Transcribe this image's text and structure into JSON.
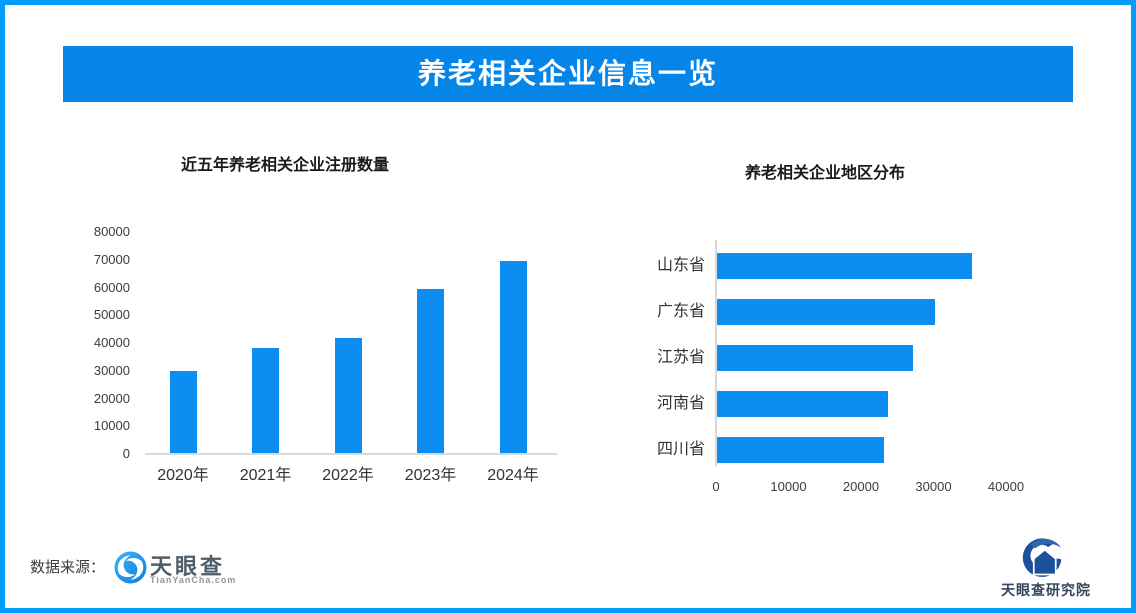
{
  "page": {
    "title": "养老相关企业信息一览",
    "colors": {
      "border_blue": "#009dff",
      "banner_blue": "#0585e8",
      "bar_blue": "#0b8df2",
      "axis_gray": "#d9d9d9",
      "tyc_blue": "#1e97f2",
      "research_navy": "#1c4f9c"
    }
  },
  "chart_data": [
    {
      "type": "bar",
      "orientation": "vertical",
      "title": "近五年养老相关企业注册数量",
      "categories": [
        "2020年",
        "2021年",
        "2022年",
        "2023年",
        "2024年"
      ],
      "values": [
        29500,
        37800,
        41600,
        59200,
        69300
      ],
      "xlabel": "",
      "ylabel": "",
      "ylim": [
        0,
        80000
      ],
      "yticks": [
        0,
        10000,
        20000,
        30000,
        40000,
        50000,
        60000,
        70000,
        80000
      ],
      "grid": false,
      "legend": "none",
      "bar_color": "#0b8df2"
    },
    {
      "type": "bar",
      "orientation": "horizontal",
      "title": "养老相关企业地区分布",
      "categories": [
        "山东省",
        "广东省",
        "江苏省",
        "河南省",
        "四川省"
      ],
      "values": [
        35200,
        30100,
        27000,
        23600,
        23000
      ],
      "xlabel": "",
      "ylabel": "",
      "xlim": [
        0,
        40000
      ],
      "xticks": [
        0,
        10000,
        20000,
        30000,
        40000
      ],
      "grid": false,
      "legend": "none",
      "bar_color": "#0b8df2"
    }
  ],
  "footer": {
    "source_label": "数据来源：",
    "source_logo_text": "天眼查",
    "source_logo_subtext": "TianYanCha.com",
    "research_logo_text": "天眼查研究院"
  }
}
